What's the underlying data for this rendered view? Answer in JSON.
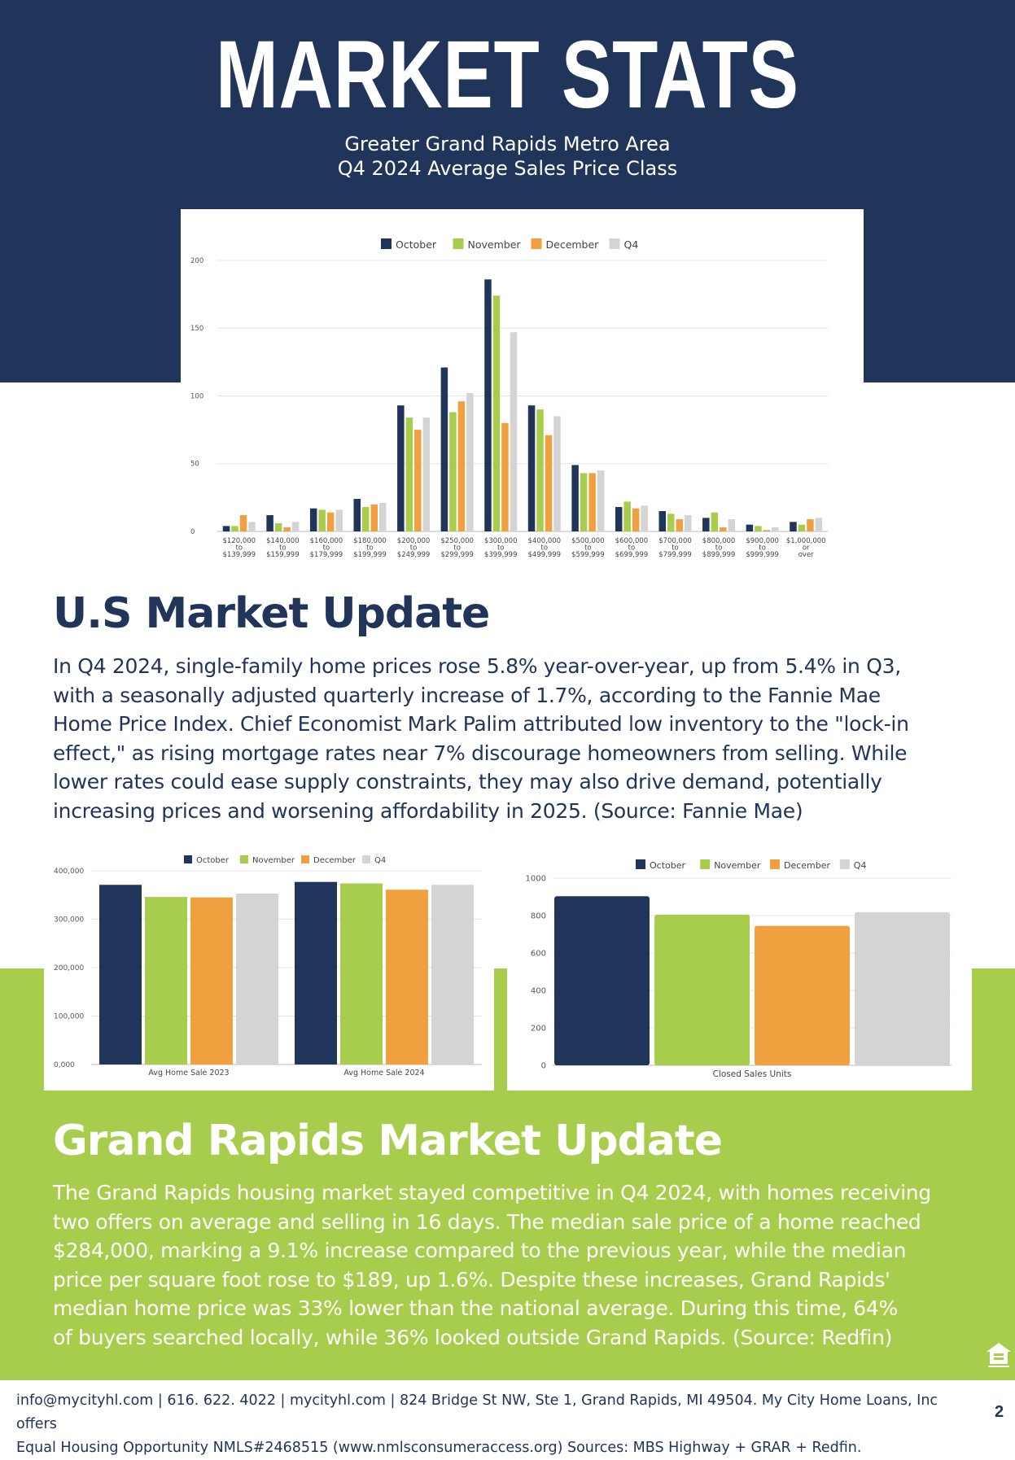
{
  "header": {
    "title": "MARKET STATS",
    "subtitle_line1": "Greater Grand Rapids Metro Area",
    "subtitle_line2": "Q4 2024 Average Sales Price Class"
  },
  "colors": {
    "navy": "#213459",
    "green": "#a8cc4c",
    "orange": "#f0a03e",
    "gray": "#d4d4d4"
  },
  "chart_data": [
    {
      "type": "bar",
      "legend": [
        "October",
        "November",
        "December",
        "Q4"
      ],
      "legend_position": "top-center",
      "categories": [
        [
          "$120,000",
          "to",
          "$139,999"
        ],
        [
          "$140,000",
          "to",
          "$159,999"
        ],
        [
          "$160,000",
          "to",
          "$179,999"
        ],
        [
          "$180,000",
          "to",
          "$199,999"
        ],
        [
          "$200,000",
          "to",
          "$249,999"
        ],
        [
          "$250,000",
          "to",
          "$299,999"
        ],
        [
          "$300,000",
          "to",
          "$399,999"
        ],
        [
          "$400,000",
          "to",
          "$499,999"
        ],
        [
          "$500,000",
          "to",
          "$599,999"
        ],
        [
          "$600,000",
          "to",
          "$699,999"
        ],
        [
          "$700,000",
          "to",
          "$799,999"
        ],
        [
          "$800,000",
          "to",
          "$899,999"
        ],
        [
          "$900,000",
          "to",
          "$999,999"
        ],
        [
          "$1,000,000",
          "or",
          "over"
        ]
      ],
      "series": [
        {
          "name": "October",
          "color": "#213459",
          "values": [
            4,
            12,
            17,
            24,
            93,
            121,
            186,
            93,
            49,
            18,
            15,
            10,
            5,
            7
          ]
        },
        {
          "name": "November",
          "color": "#a8cc4c",
          "values": [
            4,
            6,
            16,
            18,
            84,
            88,
            174,
            90,
            43,
            22,
            13,
            14,
            4,
            5
          ]
        },
        {
          "name": "December",
          "color": "#f0a03e",
          "values": [
            12,
            3,
            14,
            20,
            75,
            96,
            80,
            71,
            43,
            17,
            9,
            3,
            1,
            9
          ]
        },
        {
          "name": "Q4",
          "color": "#d4d4d4",
          "values": [
            7,
            7,
            16,
            21,
            84,
            102,
            147,
            85,
            45,
            19,
            12,
            9,
            3,
            10
          ]
        }
      ],
      "yticks": [
        "0",
        "50",
        "100",
        "150",
        "200"
      ],
      "ylim": [
        0,
        200
      ],
      "grid": true
    },
    {
      "type": "bar",
      "legend": [
        "October",
        "November",
        "December",
        "Q4"
      ],
      "legend_position": "top-center",
      "categories": [
        "Avg Home Sale 2023",
        "Avg Home Sale 2024"
      ],
      "series": [
        {
          "name": "October",
          "color": "#213459",
          "values": [
            371000,
            377000
          ]
        },
        {
          "name": "November",
          "color": "#a8cc4c",
          "values": [
            346000,
            374000
          ]
        },
        {
          "name": "December",
          "color": "#f0a03e",
          "values": [
            345000,
            361000
          ]
        },
        {
          "name": "Q4",
          "color": "#d4d4d4",
          "values": [
            353000,
            371000
          ]
        }
      ],
      "yticks": [
        "0,000",
        "100,000",
        "200,000",
        "300,000",
        "400,000"
      ],
      "ylim": [
        0,
        400000
      ],
      "grid": true
    },
    {
      "type": "bar",
      "legend": [
        "October",
        "November",
        "December",
        "Q4"
      ],
      "legend_position": "top-center",
      "categories": [
        "Closed Sales Units"
      ],
      "series": [
        {
          "name": "October",
          "color": "#213459",
          "values": [
            903
          ]
        },
        {
          "name": "November",
          "color": "#a8cc4c",
          "values": [
            805
          ]
        },
        {
          "name": "December",
          "color": "#f0a03e",
          "values": [
            745
          ]
        },
        {
          "name": "Q4",
          "color": "#d4d4d4",
          "values": [
            818
          ]
        }
      ],
      "yticks": [
        "0",
        "200",
        "400",
        "600",
        "800",
        "1000"
      ],
      "ylim": [
        0,
        1000
      ],
      "grid": true
    }
  ],
  "us_update": {
    "heading": "U.S Market Update",
    "lines": [
      "In Q4 2024, single-family home prices rose 5.8% year-over-year, up from 5.4% in Q3,",
      "with a seasonally adjusted quarterly increase of 1.7%, according to the Fannie Mae",
      "Home Price Index. Chief Economist Mark Palim attributed low inventory to the \"lock-in",
      "effect,\" as rising mortgage rates near 7% discourage homeowners from selling. While",
      "lower rates could ease supply constraints, they may also drive demand, potentially",
      "increasing prices and worsening affordability in 2025. (Source: Fannie Mae)"
    ]
  },
  "gr_update": {
    "heading": "Grand Rapids Market Update",
    "lines": [
      "The Grand Rapids housing market stayed competitive in Q4 2024, with homes receiving",
      "two offers on average and selling in 16 days. The median sale price of a home reached",
      "$284,000, marking a 9.1% increase compared to the previous year, while the median",
      "price per square foot rose to $189, up 1.6%. Despite these increases, Grand Rapids'",
      "median home price was 33% lower than the national average. During this time, 64%",
      "of buyers searched locally, while 36% looked outside Grand Rapids. (Source: Redfin)"
    ]
  },
  "footer": {
    "line1": "info@mycityhl.com | 616. 622. 4022 | mycityhl.com | 824 Bridge St NW, Ste 1, Grand Rapids, MI 49504. My City Home Loans, Inc offers",
    "line2": "Equal Housing Opportunity NMLS#2468515 (www.nmlsconsumeraccess.org) Sources: MBS Highway + GRAR + Redfin.",
    "page_number": "2",
    "icon": "equal-housing-icon"
  }
}
